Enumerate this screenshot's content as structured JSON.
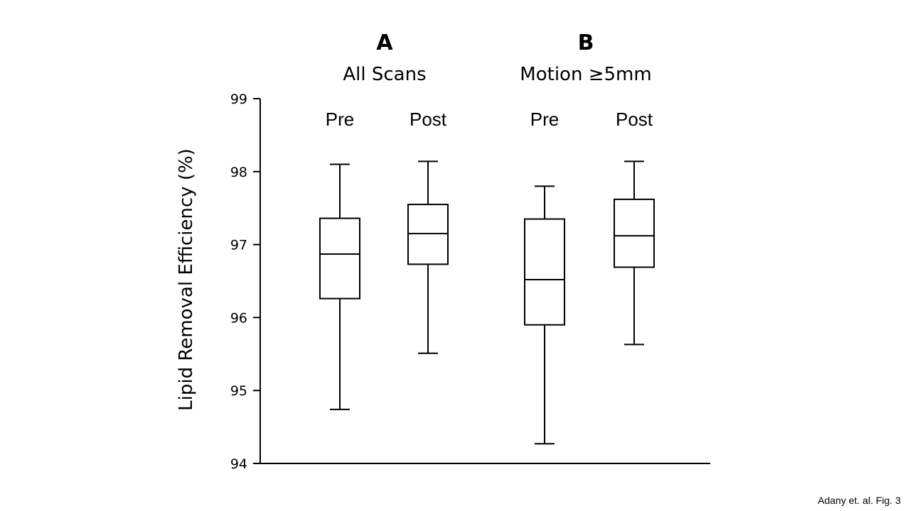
{
  "chart_data": {
    "type": "box",
    "ylabel": "Lipid Removal Efficiency (%)",
    "ylim": [
      94,
      99
    ],
    "yticks": [
      94,
      95,
      96,
      97,
      98,
      99
    ],
    "panels": [
      {
        "letter": "A",
        "subtitle": "All Scans"
      },
      {
        "letter": "B",
        "subtitle": "Motion ≥5mm"
      }
    ],
    "groups": [
      {
        "panel": "A",
        "label": "Pre",
        "min": 94.74,
        "q1": 96.26,
        "median": 96.87,
        "q3": 97.36,
        "max": 98.1
      },
      {
        "panel": "A",
        "label": "Post",
        "min": 95.51,
        "q1": 96.73,
        "median": 97.15,
        "q3": 97.55,
        "max": 98.14
      },
      {
        "panel": "B",
        "label": "Pre",
        "min": 94.27,
        "q1": 95.9,
        "median": 96.52,
        "q3": 97.35,
        "max": 97.8
      },
      {
        "panel": "B",
        "label": "Post",
        "min": 95.63,
        "q1": 96.69,
        "median": 97.12,
        "q3": 97.62,
        "max": 98.14
      }
    ]
  },
  "credit": "Adany et. al. Fig. 3"
}
